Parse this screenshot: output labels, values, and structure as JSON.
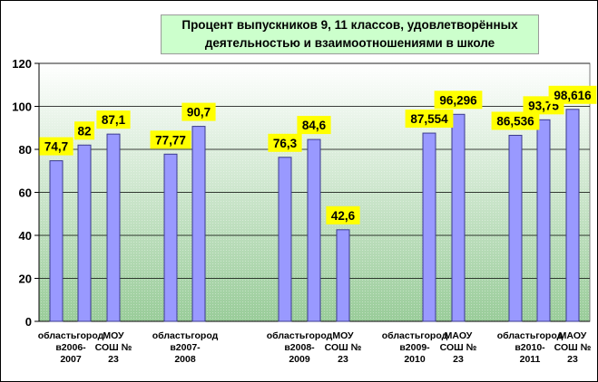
{
  "chart_data": {
    "type": "bar",
    "title": [
      "Процент выпускников 9, 11 классов, удовлетворённых",
      "деятельностью и взаимоотношениями в школе"
    ],
    "xlabel": "",
    "ylabel": "",
    "ylim": [
      0,
      120
    ],
    "yticks": [
      0,
      20,
      40,
      60,
      80,
      100,
      120
    ],
    "grid": true,
    "colors": {
      "bar": "#9999ff",
      "bar_edge": "#3a3a8c",
      "label_bg": "#ffff00",
      "plot_top": "#ffffff",
      "plot_bottom": "#99cc99"
    },
    "bars": [
      {
        "value": 74.7,
        "label": "74,7"
      },
      {
        "value": 82,
        "label": "82"
      },
      {
        "value": 87.1,
        "label": "87,1"
      },
      {
        "value": 77.77,
        "label": "77,77"
      },
      {
        "value": 90.7,
        "label": "90,7"
      },
      {
        "value": 76.3,
        "label": "76,3"
      },
      {
        "value": 84.6,
        "label": "84,6"
      },
      {
        "value": 42.6,
        "label": "42,6"
      },
      {
        "value": 87.554,
        "label": "87,554"
      },
      {
        "value": 96.296,
        "label": "96,296"
      },
      {
        "value": 86.536,
        "label": "86,536"
      },
      {
        "value": 93.75,
        "label": "93,75"
      },
      {
        "value": 98.616,
        "label": "98,616"
      }
    ],
    "category_labels": [
      [
        "областьгород",
        "в2006-",
        "2007"
      ],
      [
        "МОУ",
        "СОШ №",
        "23"
      ],
      [
        "областьгород",
        "в2007-",
        "2008"
      ],
      [
        "областьгород",
        "в2008-",
        "2009"
      ],
      [
        "МОУ",
        "СОШ №",
        "23"
      ],
      [
        "областьгород",
        "в2009-",
        "2010"
      ],
      [
        "МАОУ",
        "СОШ №",
        "23"
      ],
      [
        "областьгород",
        "в2010-",
        "2011"
      ],
      [
        "МАОУ",
        "СОШ №",
        "23"
      ]
    ]
  }
}
